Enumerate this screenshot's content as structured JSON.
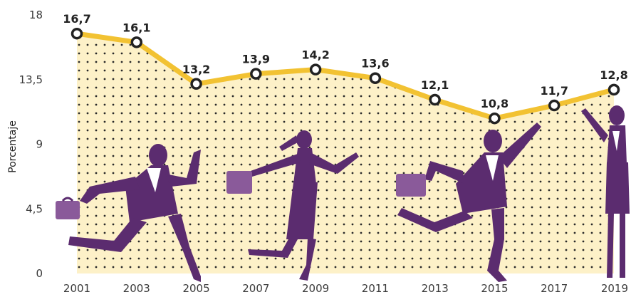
{
  "chart_data": {
    "type": "line",
    "ylabel": "Porcentaje",
    "ylim": [
      0,
      18
    ],
    "yticks": [
      0,
      4.5,
      9,
      13.5,
      18
    ],
    "ytick_labels": [
      "0",
      "4,5",
      "9",
      "13,5",
      "18"
    ],
    "x": [
      "2001",
      "2003",
      "2005",
      "2007",
      "2009",
      "2011",
      "2013",
      "2015",
      "2017",
      "2019"
    ],
    "values": [
      16.7,
      16.1,
      13.2,
      13.9,
      14.2,
      13.6,
      12.1,
      10.8,
      11.7,
      12.8
    ],
    "value_labels": [
      "16,7",
      "16,1",
      "13,2",
      "13,9",
      "14,2",
      "13,6",
      "12,1",
      "10,8",
      "11,7",
      "12,8"
    ],
    "area_fill": "dotted",
    "grid": false,
    "colors": {
      "line": "#f2c232",
      "marker_stroke": "#222222",
      "area": "#fdf1c8",
      "dots": "#2a2a2a",
      "figures": "#5b2c6f",
      "briefcase": "#8a5a9a"
    },
    "illustration": "four purple business people running and leaping below the line"
  }
}
